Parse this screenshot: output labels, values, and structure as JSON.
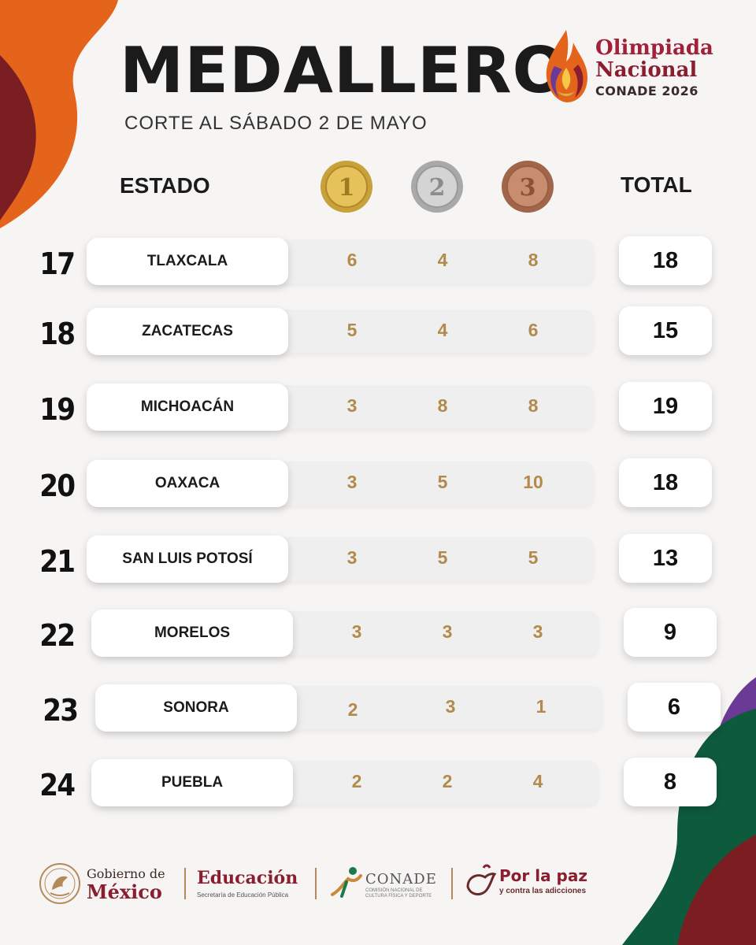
{
  "header": {
    "title": "MEDALLERO",
    "subtitle": "CORTE AL SÁBADO 2 DE MAYO"
  },
  "event_logo": {
    "line1": "Olimpiada",
    "line2": "Nacional",
    "line3": "CONADE 2026"
  },
  "table": {
    "col_state": "ESTADO",
    "col_total": "TOTAL",
    "medals": [
      {
        "label": "1",
        "color": "#d8b24a"
      },
      {
        "label": "2",
        "color": "#bdbdbd"
      },
      {
        "label": "3",
        "color": "#b97a5c"
      }
    ],
    "rows": [
      {
        "rank": "17",
        "state": "TLAXCALA",
        "gold": "6",
        "silver": "4",
        "bronze": "8",
        "total": "18"
      },
      {
        "rank": "18",
        "state": "ZACATECAS",
        "gold": "5",
        "silver": "4",
        "bronze": "6",
        "total": "15"
      },
      {
        "rank": "19",
        "state": "MICHOACÁN",
        "gold": "3",
        "silver": "8",
        "bronze": "8",
        "total": "19"
      },
      {
        "rank": "20",
        "state": "OAXACA",
        "gold": "3",
        "silver": "5",
        "bronze": "10",
        "total": "18"
      },
      {
        "rank": "21",
        "state": "SAN LUIS POTOSÍ",
        "gold": "3",
        "silver": "5",
        "bronze": "5",
        "total": "13"
      },
      {
        "rank": "22",
        "state": "MORELOS",
        "gold": "3",
        "silver": "3",
        "bronze": "3",
        "total": "9"
      },
      {
        "rank": "23",
        "state": "SONORA",
        "gold": "2",
        "silver": "3",
        "bronze": "1",
        "total": "6"
      },
      {
        "rank": "24",
        "state": "PUEBLA",
        "gold": "2",
        "silver": "2",
        "bronze": "4",
        "total": "8"
      }
    ]
  },
  "footer": {
    "gobierno_line1": "Gobierno de",
    "gobierno_line2": "México",
    "educacion_line1": "Educación",
    "educacion_line2": "Secretaría de Educación Pública",
    "conade_line1": "CONADE",
    "conade_line2": "COMISIÓN NACIONAL DE CULTURA FÍSICA Y DEPORTE",
    "paz_line1": "Por la paz",
    "paz_line2": "y contra las adicciones"
  },
  "colors": {
    "accent_red": "#8a1e30",
    "medal_count": "#b28a4c",
    "orange": "#e5641c",
    "maroon": "#7a1e22",
    "purple": "#6a3a96",
    "green": "#0e5a3c"
  }
}
